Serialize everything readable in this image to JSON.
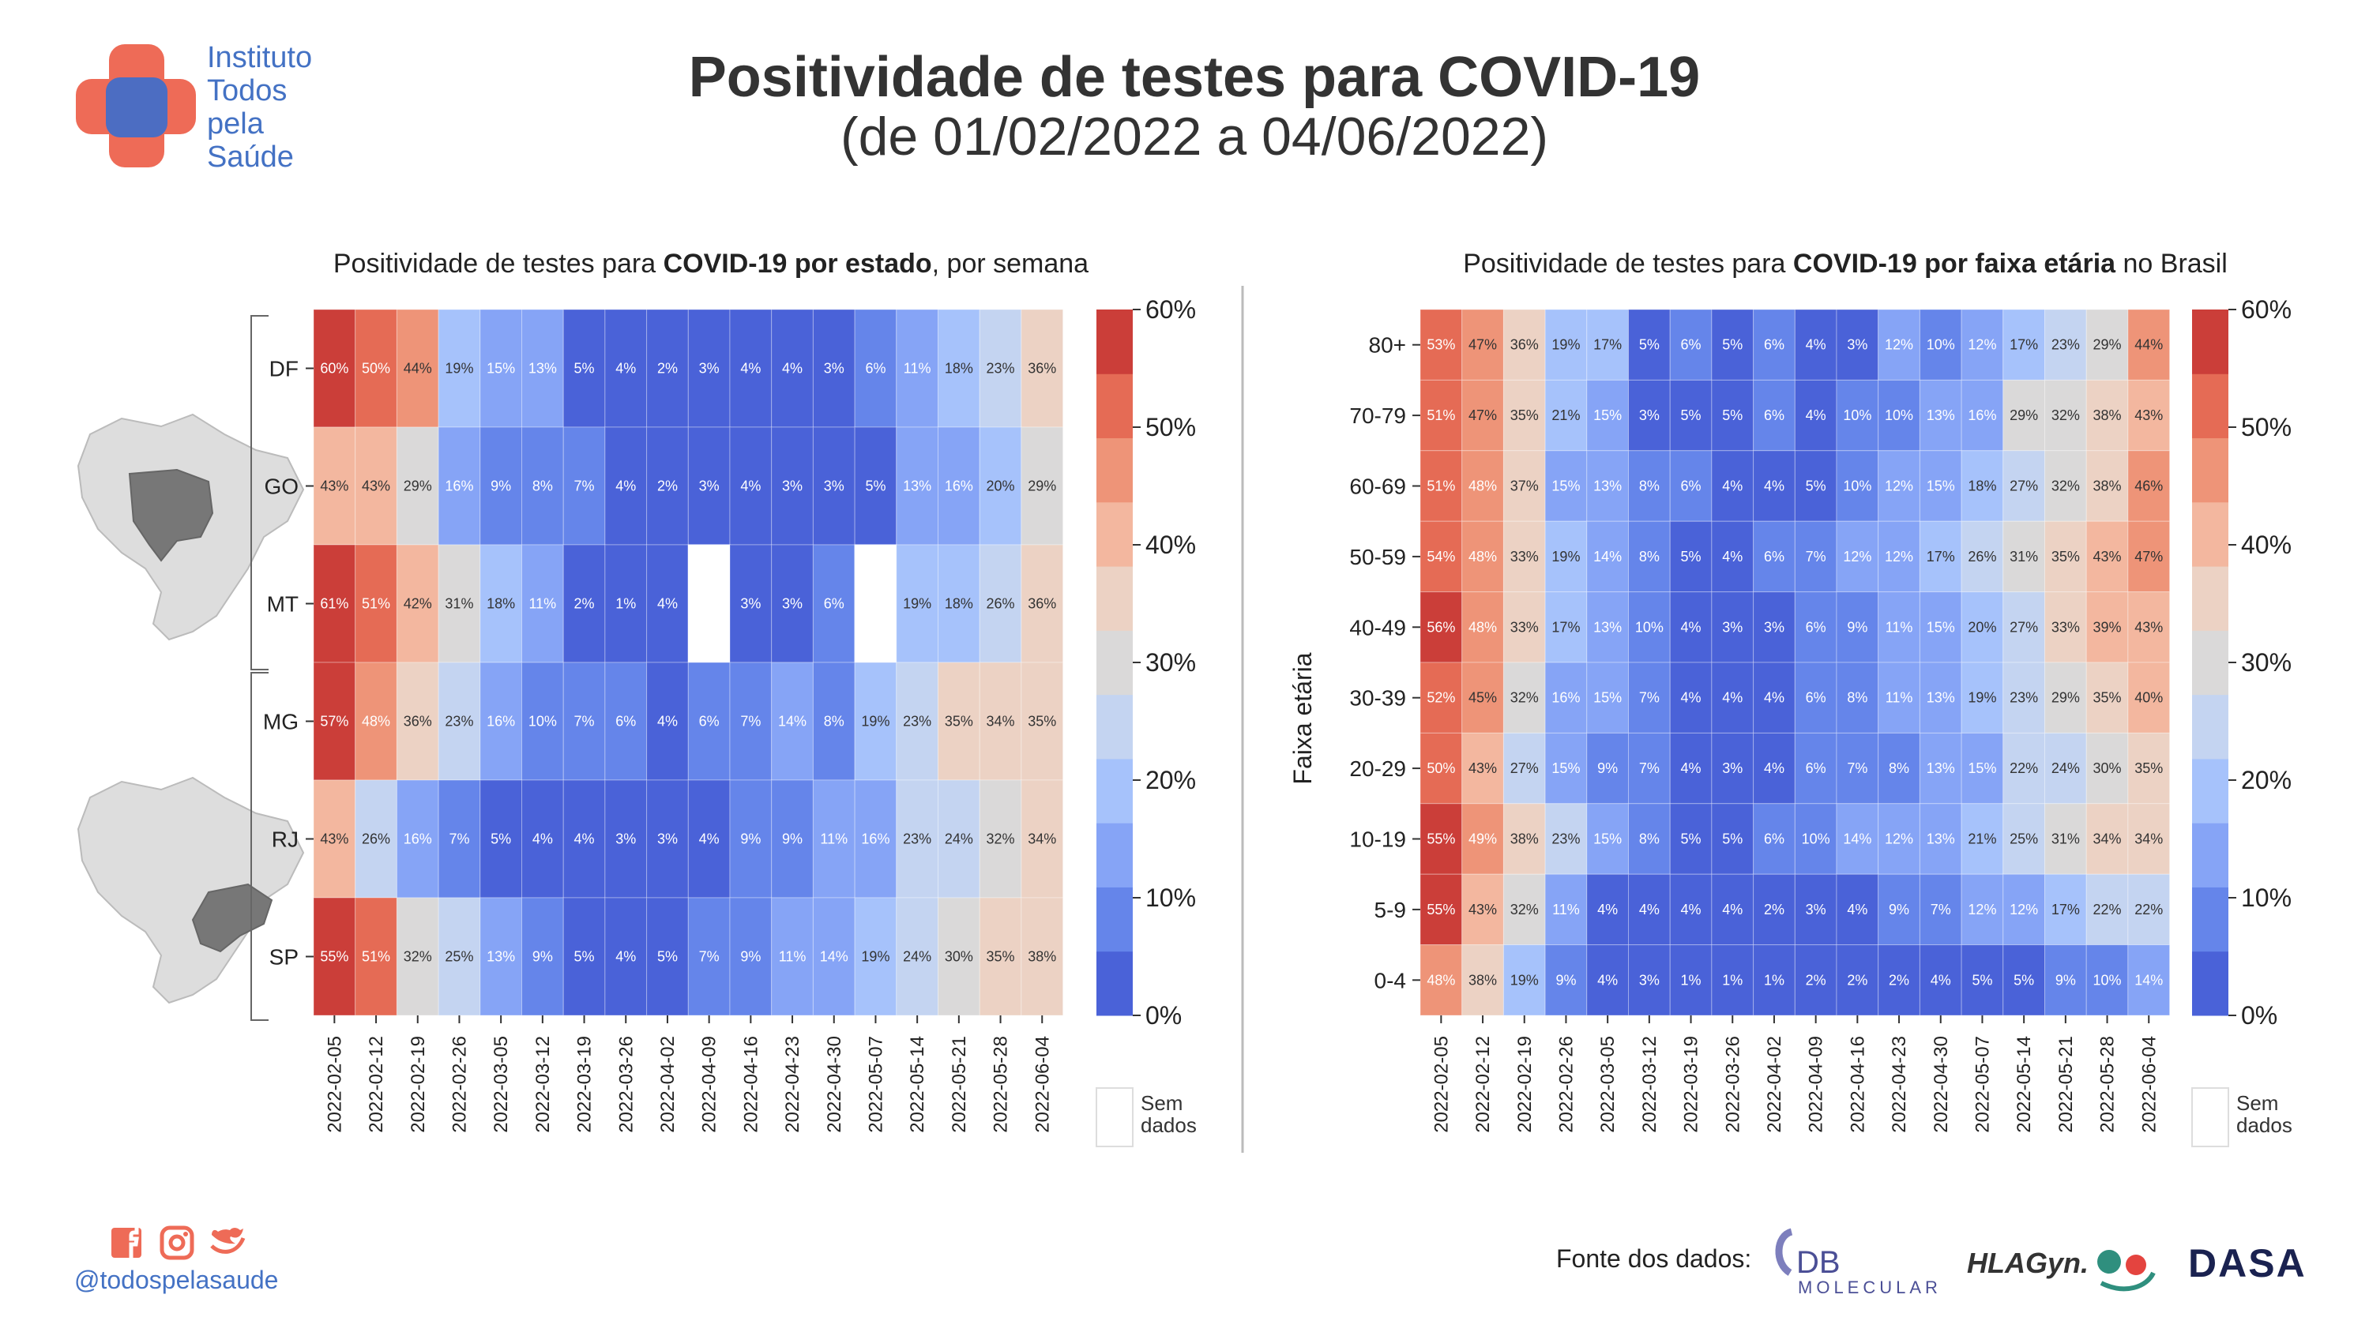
{
  "header": {
    "title": "Positividade de testes para COVID-19",
    "subtitle": "(de 01/02/2022 a 04/06/2022)",
    "logo_words": [
      "Instituto",
      "Todos",
      "pela",
      "Saúde"
    ]
  },
  "footer": {
    "handle": "@todospelasaude",
    "social_icons": [
      "facebook-icon",
      "instagram-icon",
      "twitter-icon"
    ],
    "source_label": "Fonte dos dados:",
    "source_logos": [
      "DB",
      "MOLECULAR",
      "HLAGyn.",
      "DASA"
    ]
  },
  "colors": {
    "scale": [
      "#4a62d8",
      "#6585ea",
      "#86a4f6",
      "#a6c2fb",
      "#c4d4f1",
      "#dad9d9",
      "#ecd2c4",
      "#f3b79f",
      "#ee9478",
      "#e56b55",
      "#cb3e39"
    ],
    "brand_red": "#e8543f",
    "brand_blue": "#4472c4",
    "no_data": "#ffffff"
  },
  "chart_data": [
    {
      "type": "heatmap",
      "title_parts": [
        "Positividade de testes para ",
        "COVID-19 por estado",
        ", por semana"
      ],
      "x": [
        "2022-02-05",
        "2022-02-12",
        "2022-02-19",
        "2022-02-26",
        "2022-03-05",
        "2022-03-12",
        "2022-03-19",
        "2022-03-26",
        "2022-04-02",
        "2022-04-09",
        "2022-04-16",
        "2022-04-23",
        "2022-04-30",
        "2022-05-07",
        "2022-05-14",
        "2022-05-21",
        "2022-05-28",
        "2022-06-04"
      ],
      "y": [
        "DF",
        "GO",
        "MT",
        "MG",
        "RJ",
        "SP"
      ],
      "groups": [
        [
          "DF",
          "GO",
          "MT"
        ],
        [
          "MG",
          "RJ",
          "SP"
        ]
      ],
      "values": [
        [
          60,
          50,
          44,
          19,
          15,
          13,
          5,
          4,
          2,
          3,
          4,
          4,
          3,
          6,
          11,
          18,
          23,
          36
        ],
        [
          43,
          43,
          29,
          16,
          9,
          8,
          7,
          4,
          2,
          3,
          4,
          3,
          3,
          5,
          13,
          16,
          20,
          29
        ],
        [
          61,
          51,
          42,
          31,
          18,
          11,
          2,
          1,
          4,
          null,
          3,
          3,
          6,
          null,
          19,
          18,
          26,
          36
        ],
        [
          57,
          48,
          36,
          23,
          16,
          10,
          7,
          6,
          4,
          6,
          7,
          14,
          8,
          19,
          23,
          35,
          34,
          35
        ],
        [
          43,
          26,
          16,
          7,
          5,
          4,
          4,
          3,
          3,
          4,
          9,
          9,
          11,
          16,
          23,
          24,
          32,
          34
        ],
        [
          55,
          51,
          32,
          25,
          13,
          9,
          5,
          4,
          5,
          7,
          9,
          11,
          14,
          19,
          24,
          30,
          35,
          38
        ]
      ],
      "colorbar": {
        "ticks": [
          "0%",
          "10%",
          "20%",
          "30%",
          "40%",
          "50%",
          "60%"
        ],
        "range": [
          0,
          60
        ]
      },
      "no_data_label": [
        "Sem",
        "dados"
      ]
    },
    {
      "type": "heatmap",
      "title_parts": [
        "Positividade de testes para ",
        "COVID-19 por faixa etária",
        " no Brasil"
      ],
      "ylabel": "Faixa etária",
      "x": [
        "2022-02-05",
        "2022-02-12",
        "2022-02-19",
        "2022-02-26",
        "2022-03-05",
        "2022-03-12",
        "2022-03-19",
        "2022-03-26",
        "2022-04-02",
        "2022-04-09",
        "2022-04-16",
        "2022-04-23",
        "2022-04-30",
        "2022-05-07",
        "2022-05-14",
        "2022-05-21",
        "2022-05-28",
        "2022-06-04"
      ],
      "y": [
        "80+",
        "70-79",
        "60-69",
        "50-59",
        "40-49",
        "30-39",
        "20-29",
        "10-19",
        "5-9",
        "0-4"
      ],
      "values": [
        [
          53,
          47,
          36,
          19,
          17,
          5,
          6,
          5,
          6,
          4,
          3,
          12,
          10,
          12,
          17,
          23,
          29,
          44
        ],
        [
          51,
          47,
          35,
          21,
          15,
          3,
          5,
          5,
          6,
          4,
          10,
          10,
          13,
          16,
          29,
          32,
          38,
          43
        ],
        [
          51,
          48,
          37,
          15,
          13,
          8,
          6,
          4,
          4,
          5,
          10,
          12,
          15,
          18,
          27,
          32,
          38,
          46
        ],
        [
          54,
          48,
          33,
          19,
          14,
          8,
          5,
          4,
          6,
          7,
          12,
          12,
          17,
          26,
          31,
          35,
          43,
          47
        ],
        [
          56,
          48,
          33,
          17,
          13,
          10,
          4,
          3,
          3,
          6,
          9,
          11,
          15,
          20,
          27,
          33,
          39,
          43
        ],
        [
          52,
          45,
          32,
          16,
          15,
          7,
          4,
          4,
          4,
          6,
          8,
          11,
          13,
          19,
          23,
          29,
          35,
          40
        ],
        [
          50,
          43,
          27,
          15,
          9,
          7,
          4,
          3,
          4,
          6,
          7,
          8,
          13,
          15,
          22,
          24,
          30,
          35
        ],
        [
          55,
          49,
          38,
          23,
          15,
          8,
          5,
          5,
          6,
          10,
          14,
          12,
          13,
          21,
          25,
          31,
          34,
          34
        ],
        [
          55,
          43,
          32,
          11,
          4,
          4,
          4,
          4,
          2,
          3,
          4,
          9,
          7,
          12,
          12,
          17,
          22,
          22
        ],
        [
          48,
          38,
          19,
          9,
          4,
          3,
          1,
          1,
          1,
          2,
          2,
          2,
          4,
          5,
          5,
          9,
          10,
          14
        ]
      ],
      "colorbar": {
        "ticks": [
          "0%",
          "10%",
          "20%",
          "30%",
          "40%",
          "50%",
          "60%"
        ],
        "range": [
          0,
          60
        ]
      },
      "no_data_label": [
        "Sem",
        "dados"
      ]
    }
  ]
}
